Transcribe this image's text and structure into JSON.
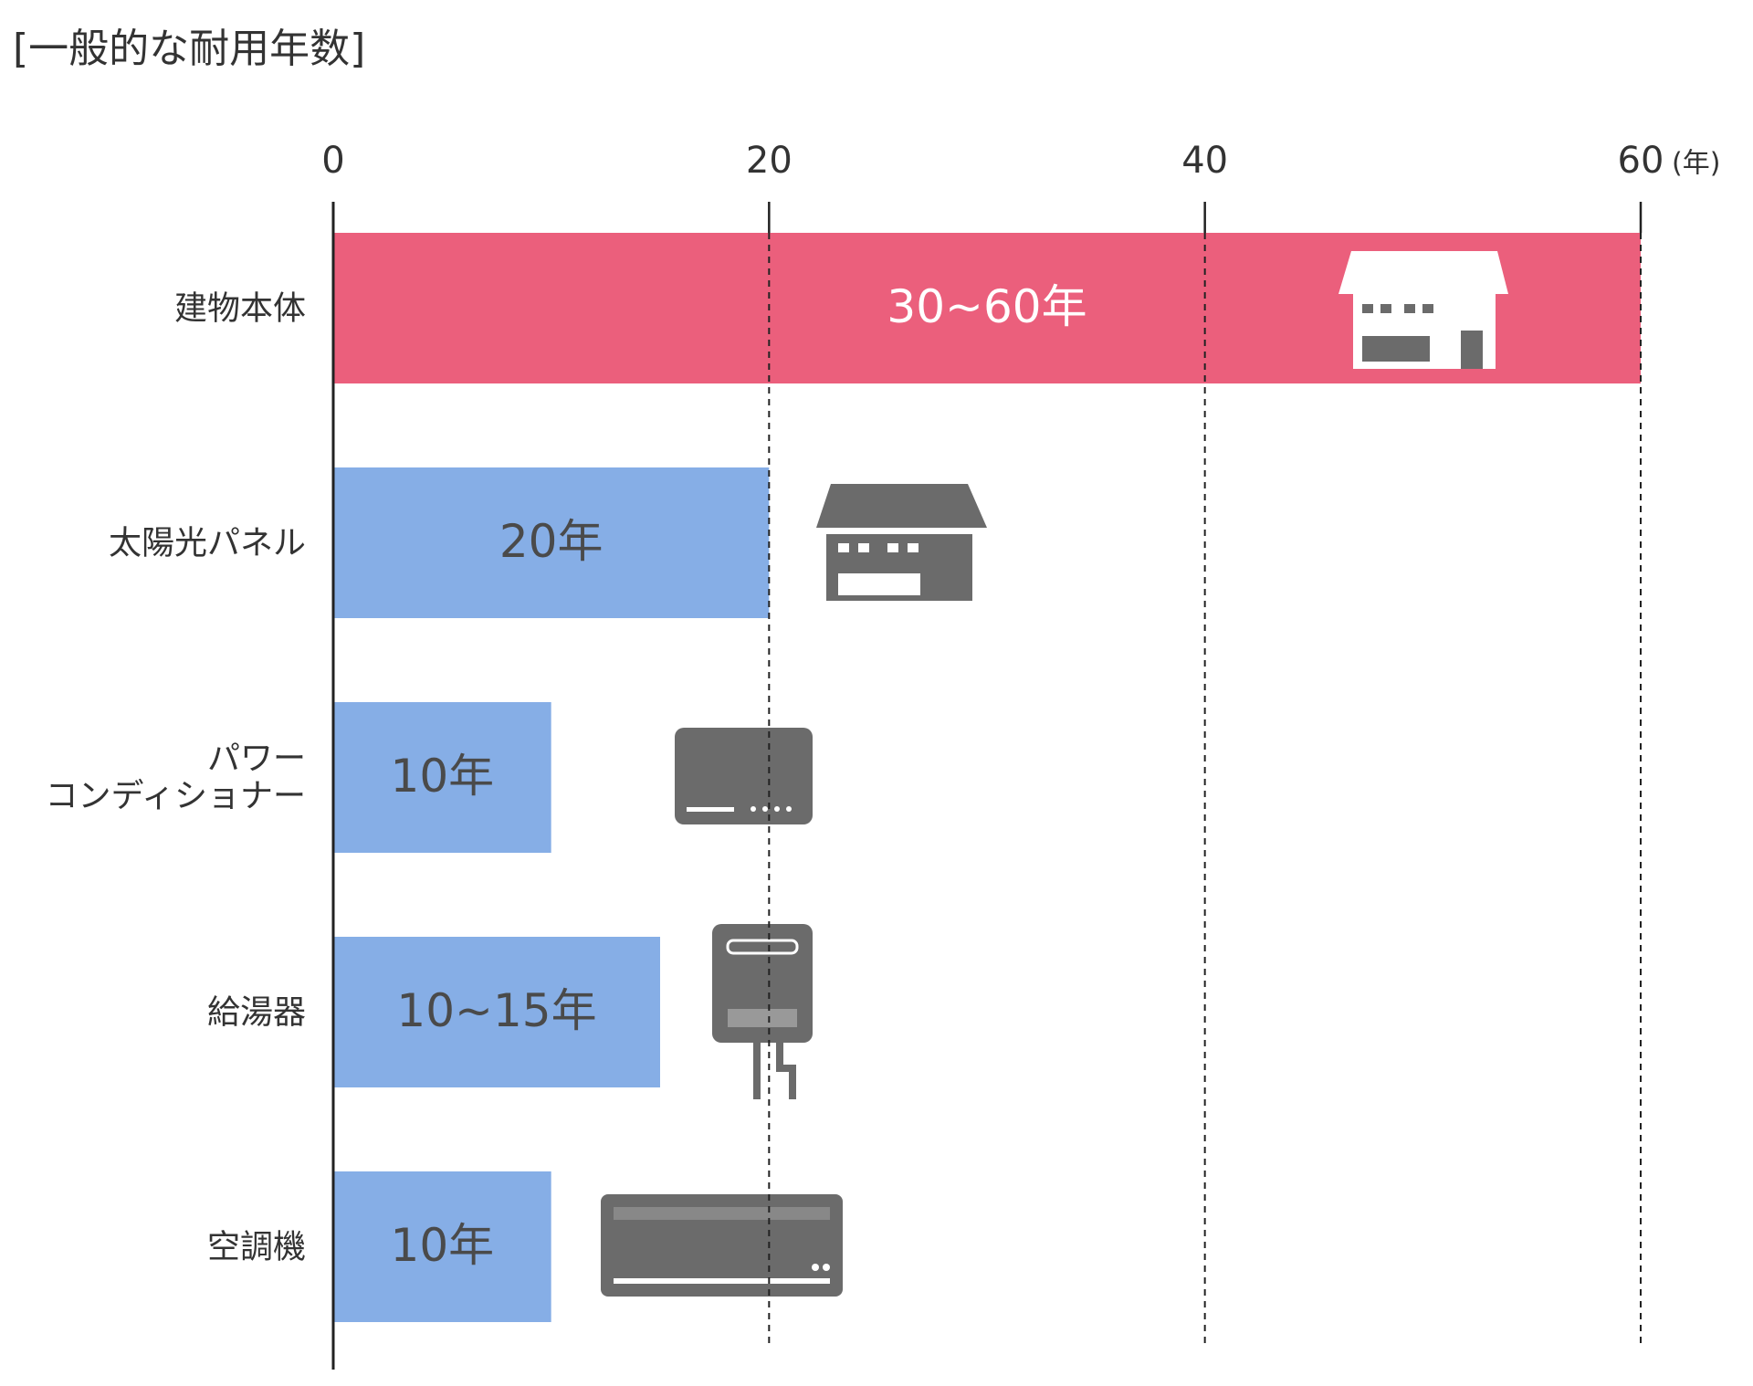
{
  "chart_data": {
    "type": "hbar",
    "title": "[一般的な耐用年数]",
    "x_unit_label": "(年)",
    "categories": [
      "建物本体",
      "太陽光パネル",
      "パワー\nコンディショナー",
      "給湯器",
      "空調機"
    ],
    "values": [
      60,
      20,
      10,
      15,
      10
    ],
    "value_labels": [
      "30~60年",
      "20年",
      "10年",
      "10~15年",
      "10年"
    ],
    "colors": [
      "#eb5f7c",
      "#86aee6",
      "#86aee6",
      "#86aee6",
      "#86aee6"
    ],
    "value_label_colors": [
      "#ffffff",
      "#4a4a4a",
      "#4a4a4a",
      "#4a4a4a",
      "#4a4a4a"
    ],
    "xlim": [
      0,
      60
    ],
    "xticks": [
      0,
      20,
      40,
      60
    ],
    "grid": true
  }
}
